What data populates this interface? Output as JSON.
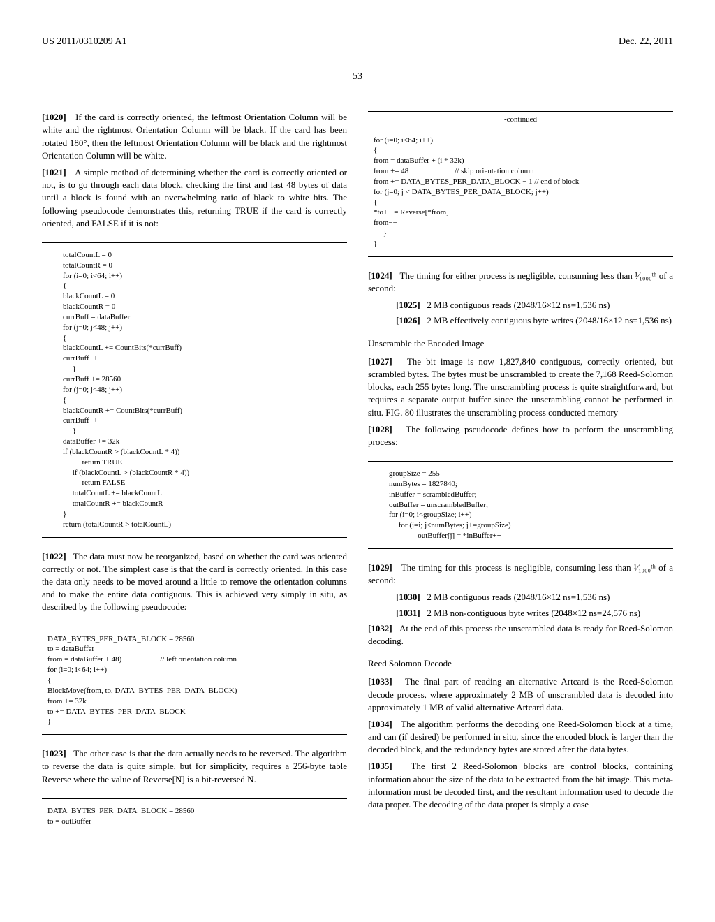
{
  "header": {
    "left": "US 2011/0310209 A1",
    "right": "Dec. 22, 2011"
  },
  "page_number": "53",
  "left_col": {
    "p1020": "If the card is correctly oriented, the leftmost Orientation Column will be white and the rightmost Orientation Column will be black. If the card has been rotated 180°, then the leftmost Orientation Column will be black and the rightmost Orientation Column will be white.",
    "p1021": "A simple method of determining whether the card is correctly oriented or not, is to go through each data block, checking the first and last 48 bytes of data until a block is found with an overwhelming ratio of black to white bits. The following pseudocode demonstrates this, returning TRUE if the card is correctly oriented, and FALSE if it is not:",
    "code1": "totalCountL = 0\ntotalCountR = 0\nfor (i=0; i<64; i++)\n{\nblackCountL = 0\nblackCountR = 0\ncurrBuff = dataBuffer\nfor (j=0; j<48; j++)\n{\nblackCountL += CountBits(*currBuff)\ncurrBuff++\n     }\ncurrBuff += 28560\nfor (j=0; j<48; j++)\n{\nblackCountR += CountBits(*currBuff)\ncurrBuff++\n     }\ndataBuffer += 32k\nif (blackCountR > (blackCountL * 4))\n          return TRUE\n     if (blackCountL > (blackCountR * 4))\n          return FALSE\n     totalCountL += blackCountL\n     totalCountR += blackCountR\n}\nreturn (totalCountR > totalCountL)",
    "p1022": "The data must now be reorganized, based on whether the card was oriented correctly or not. The simplest case is that the card is correctly oriented. In this case the data only needs to be moved around a little to remove the orientation columns and to make the entire data contiguous. This is achieved very simply in situ, as described by the following pseudocode:",
    "code2": "DATA_BYTES_PER_DATA_BLOCK = 28560\nto = dataBuffer\nfrom = dataBuffer + 48)                    // left orientation column\nfor (i=0; i<64; i++)\n{\nBlockMove(from, to, DATA_BYTES_PER_DATA_BLOCK)\nfrom += 32k\nto += DATA_BYTES_PER_DATA_BLOCK\n}",
    "p1023": "The other case is that the data actually needs to be reversed. The algorithm to reverse the data is quite simple, but for simplicity, requires a 256-byte table Reverse where the value of Reverse[N] is a bit-reversed N.",
    "code3": "DATA_BYTES_PER_DATA_BLOCK = 28560\nto = outBuffer"
  },
  "right_col": {
    "continued_label": "-continued",
    "code_cont": "for (i=0; i<64; i++)\n{\nfrom = dataBuffer + (i * 32k)\nfrom += 48                        // skip orientation column\nfrom += DATA_BYTES_PER_DATA_BLOCK − 1 // end of block\nfor (j=0; j < DATA_BYTES_PER_DATA_BLOCK; j++)\n{\n*to++ = Reverse[*from]\nfrom−−\n     }\n}",
    "p1024": "The timing for either process is negligible, consuming less than ¹⁄₁₀₀₀ᵗʰ of a second:",
    "p1025": "2 MB contiguous reads (2048/16×12 ns=1,536 ns)",
    "p1026": "2 MB effectively contiguous byte writes (2048/16×12 ns=1,536 ns)",
    "heading_unscramble": "Unscramble the Encoded Image",
    "p1027": "The bit image is now 1,827,840 contiguous, correctly oriented, but scrambled bytes. The bytes must be unscrambled to create the 7,168 Reed-Solomon blocks, each 255 bytes long. The unscrambling process is quite straightforward, but requires a separate output buffer since the unscrambling cannot be performed in situ. FIG. 80 illustrates the unscrambling process conducted memory",
    "p1028": "The following pseudocode defines how to perform the unscrambling process:",
    "code_unscramble": "groupSize = 255\nnumBytes = 1827840;\ninBuffer = scrambledBuffer;\noutBuffer = unscrambledBuffer;\nfor (i=0; i<groupSize; i++)\n     for (j=i; j<numBytes; j+=groupSize)\n               outBuffer[j] = *inBuffer++",
    "p1029": "The timing for this process is negligible, consuming less than ¹⁄₁₀₀₀ᵗʰ of a second:",
    "p1030": "2 MB contiguous reads (2048/16×12 ns=1,536 ns)",
    "p1031": "2 MB non-contiguous byte writes (2048×12 ns=24,576 ns)",
    "p1032": "At the end of this process the unscrambled data is ready for Reed-Solomon decoding.",
    "heading_reed": "Reed Solomon Decode",
    "p1033": "The final part of reading an alternative Artcard is the Reed-Solomon decode process, where approximately 2 MB of unscrambled data is decoded into approximately 1 MB of valid alternative Artcard data.",
    "p1034": "The algorithm performs the decoding one Reed-Solomon block at a time, and can (if desired) be performed in situ, since the encoded block is larger than the decoded block, and the redundancy bytes are stored after the data bytes.",
    "p1035": "The first 2 Reed-Solomon blocks are control blocks, containing information about the size of the data to be extracted from the bit image. This meta-information must be decoded first, and the resultant information used to decode the data proper. The decoding of the data proper is simply a case"
  },
  "labels": {
    "n1020": "[1020]",
    "n1021": "[1021]",
    "n1022": "[1022]",
    "n1023": "[1023]",
    "n1024": "[1024]",
    "n1025": "[1025]",
    "n1026": "[1026]",
    "n1027": "[1027]",
    "n1028": "[1028]",
    "n1029": "[1029]",
    "n1030": "[1030]",
    "n1031": "[1031]",
    "n1032": "[1032]",
    "n1033": "[1033]",
    "n1034": "[1034]",
    "n1035": "[1035]"
  }
}
